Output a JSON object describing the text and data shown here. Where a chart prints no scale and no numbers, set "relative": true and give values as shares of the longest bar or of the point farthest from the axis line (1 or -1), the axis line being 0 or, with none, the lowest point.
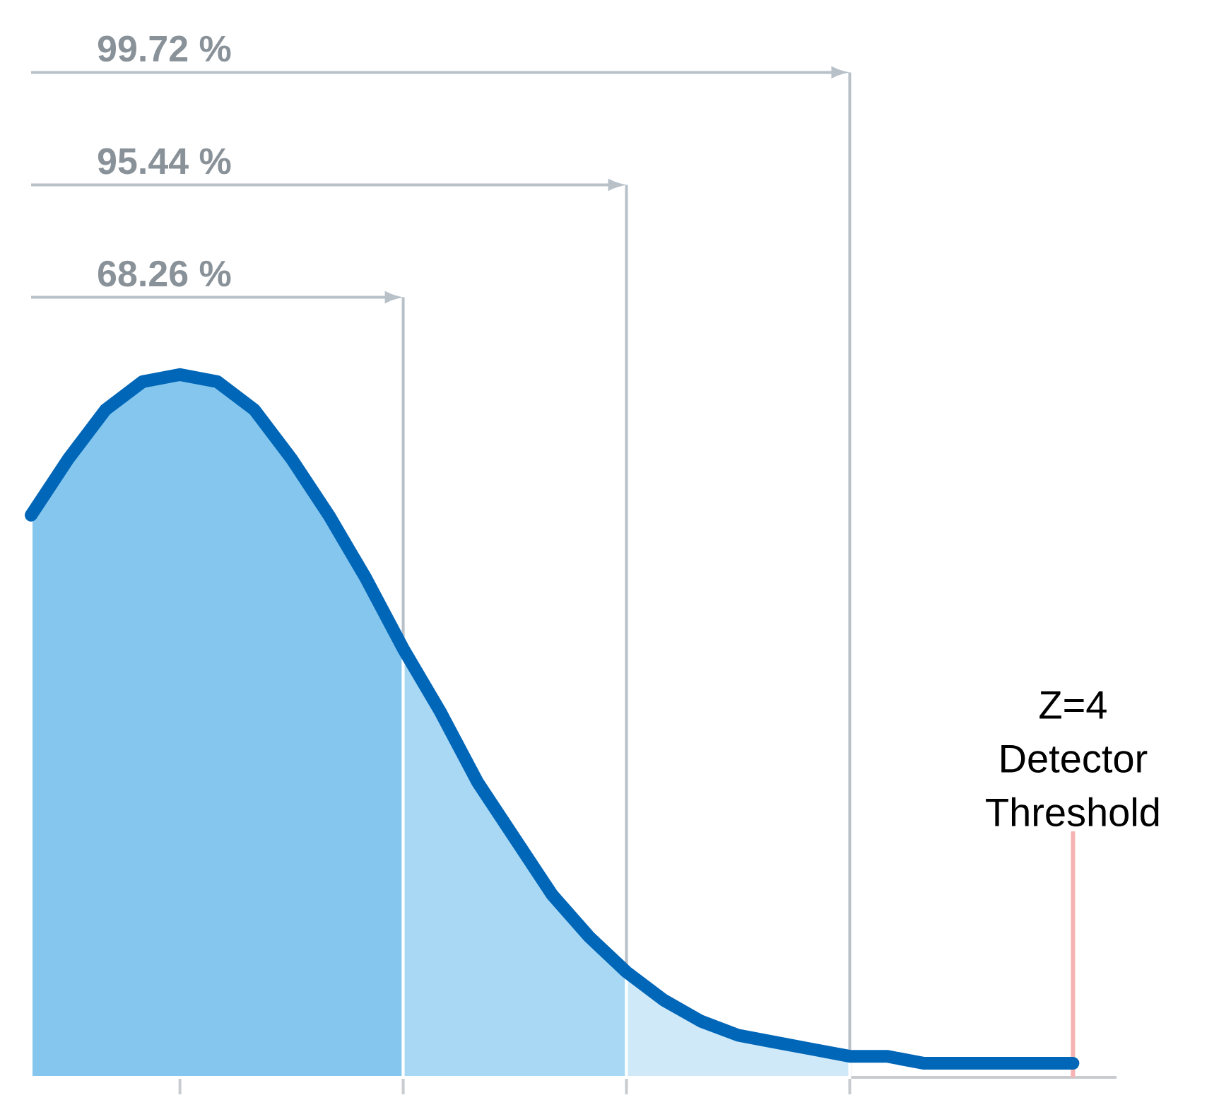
{
  "chart_data": {
    "type": "area",
    "relative": true,
    "marker": "none",
    "grid": "x",
    "categories": [
      null,
      null,
      null,
      null,
      null,
      null,
      null,
      null,
      null,
      null,
      null,
      null,
      null,
      null,
      null,
      null,
      null,
      null,
      null,
      null,
      null,
      null,
      null,
      null,
      null,
      null,
      null,
      null,
      null
    ],
    "series": [
      {
        "color": "#84c6ee",
        "values": [
          0.8,
          0.88,
          0.95,
          0.99,
          1.0,
          0.99,
          0.95,
          0.88,
          0.8,
          0.71,
          0.61,
          null,
          null,
          null,
          null,
          null,
          null,
          null,
          null,
          null,
          null,
          null,
          null,
          null,
          null,
          null,
          null,
          null,
          null
        ]
      },
      {
        "color": "#a8d8f4",
        "values": [
          null,
          null,
          null,
          null,
          null,
          null,
          null,
          null,
          null,
          null,
          0.61,
          0.52,
          0.42,
          0.34,
          0.26,
          0.2,
          0.15,
          null,
          null,
          null,
          null,
          null,
          null,
          null,
          null,
          null,
          null,
          null,
          null
        ]
      },
      {
        "color": "#cfe9f9",
        "values": [
          null,
          null,
          null,
          null,
          null,
          null,
          null,
          null,
          null,
          null,
          null,
          null,
          null,
          null,
          null,
          null,
          0.15,
          0.11,
          0.08,
          0.06,
          0.05,
          0.04,
          0.03,
          null,
          null,
          null,
          null,
          null,
          null
        ]
      },
      {
        "type": "line",
        "color": "#0066b8",
        "values": [
          0.8,
          0.88,
          0.95,
          0.99,
          1.0,
          0.99,
          0.95,
          0.88,
          0.8,
          0.71,
          0.61,
          0.52,
          0.42,
          0.34,
          0.26,
          0.2,
          0.15,
          0.11,
          0.08,
          0.06,
          0.05,
          0.04,
          0.03,
          0.03,
          0.02,
          0.02,
          0.02,
          0.02,
          0.02
        ]
      }
    ],
    "annotations": [
      "68.26 %",
      "95.44 %",
      "99.72 %",
      "Z=4 Detector Threshold"
    ]
  }
}
